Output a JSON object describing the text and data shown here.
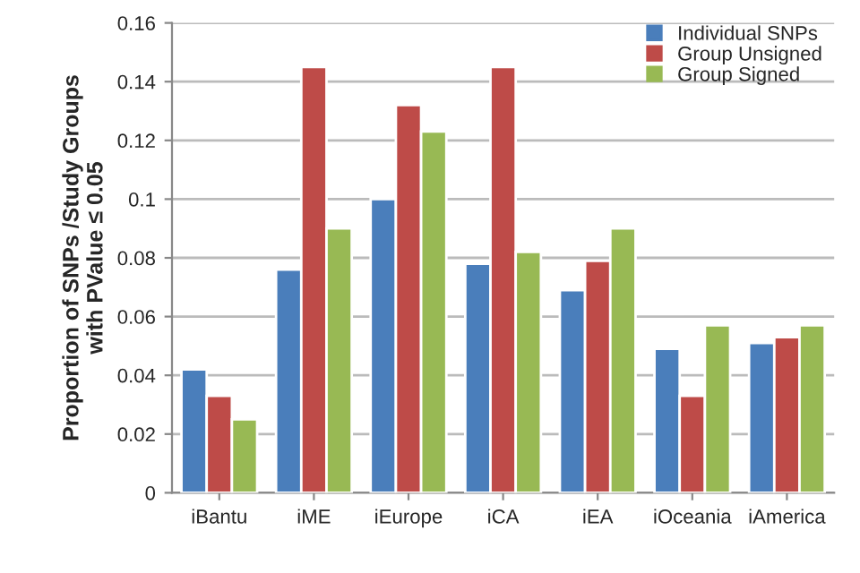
{
  "chart_data": {
    "type": "bar",
    "ylabel": "Proportion of SNPs /Study Groups\nwith PValue ≤ 0.05",
    "categories": [
      "iBantu",
      "iME",
      "iEurope",
      "iCA",
      "iEA",
      "iOceania",
      "iAmerica"
    ],
    "series": [
      {
        "name": "Individual SNPs",
        "color": "#4a7ebb",
        "values": [
          0.042,
          0.076,
          0.1,
          0.078,
          0.069,
          0.049,
          0.051
        ]
      },
      {
        "name": "Group Unsigned",
        "color": "#be4b48",
        "values": [
          0.033,
          0.145,
          0.132,
          0.145,
          0.079,
          0.033,
          0.053
        ]
      },
      {
        "name": "Group Signed",
        "color": "#98b954",
        "values": [
          0.025,
          0.09,
          0.123,
          0.082,
          0.09,
          0.057,
          0.057
        ]
      }
    ],
    "ylim": [
      0,
      0.16
    ],
    "yticks": [
      0,
      0.02,
      0.04,
      0.06,
      0.08,
      0.1,
      0.12,
      0.14,
      0.16
    ],
    "grid": "y",
    "legend": "top right"
  }
}
